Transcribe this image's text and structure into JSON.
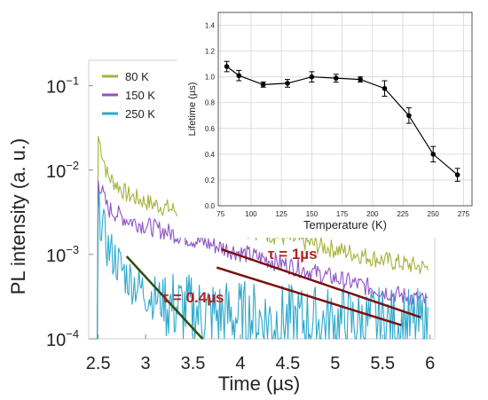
{
  "chart_data": [
    {
      "type": "line",
      "yscale": "log",
      "xlabel": "Time (µs)",
      "ylabel": "PL intensity (a. u.)",
      "xlim": [
        2.4,
        6.05
      ],
      "ylim": [
        0.0001,
        0.2
      ],
      "x_ticks": [
        2.5,
        3,
        3.5,
        4,
        4.5,
        5,
        5.5,
        6
      ],
      "x_tick_labels": [
        "2.5",
        "3",
        "3.5",
        "4",
        "4.5",
        "5",
        "5.5",
        "6"
      ],
      "y_ticks": [
        {
          "value": 0.1,
          "base": "10",
          "exp": "−1"
        },
        {
          "value": 0.01,
          "base": "10",
          "exp": "−2"
        },
        {
          "value": 0.001,
          "base": "10",
          "exp": "−3"
        },
        {
          "value": 0.0001,
          "base": "10",
          "exp": "−4"
        }
      ],
      "legend": {
        "position": "top-left"
      },
      "series": [
        {
          "name": "80 K",
          "color": "#a6b23a",
          "onset": 2.5,
          "peak": 0.025,
          "decay": [
            [
              2.5,
              0.025
            ],
            [
              2.6,
              0.0085
            ],
            [
              2.8,
              0.0052
            ],
            [
              3.0,
              0.0042
            ],
            [
              3.5,
              0.0029
            ],
            [
              4.0,
              0.0021
            ],
            [
              4.5,
              0.00155
            ],
            [
              5.0,
              0.00115
            ],
            [
              5.5,
              0.00086
            ],
            [
              6.0,
              0.00068
            ]
          ]
        },
        {
          "name": "150 K",
          "color": "#8e53c4",
          "onset": 2.5,
          "peak": 0.0075,
          "decay": [
            [
              2.5,
              0.0075
            ],
            [
              2.6,
              0.0035
            ],
            [
              2.8,
              0.0026
            ],
            [
              3.0,
              0.0022
            ],
            [
              3.5,
              0.0015
            ],
            [
              4.0,
              0.00105
            ],
            [
              4.5,
              0.00075
            ],
            [
              5.0,
              0.00052
            ],
            [
              5.5,
              0.00037
            ],
            [
              6.0,
              0.00027
            ]
          ]
        },
        {
          "name": "250 K",
          "color": "#2fa8cc",
          "onset": 2.5,
          "peak": 0.0035,
          "decay": [
            [
              2.5,
              0.0035
            ],
            [
              2.6,
              0.0012
            ],
            [
              2.8,
              0.00055
            ],
            [
              3.0,
              0.00035
            ],
            [
              3.3,
              0.00024
            ],
            [
              3.6,
              0.0002
            ],
            [
              4.5,
              0.00016
            ],
            [
              6.0,
              0.00014
            ]
          ]
        }
      ],
      "fits": [
        {
          "color": "#2e4f12",
          "points": [
            [
              2.8,
              0.00095
            ],
            [
              3.6,
              0.0001
            ]
          ]
        },
        {
          "color": "#7a1010",
          "points": [
            [
              3.8,
              0.00115
            ],
            [
              5.9,
              0.00018
            ]
          ]
        },
        {
          "color": "#7a1010",
          "points": [
            [
              3.75,
              0.0007
            ],
            [
              5.7,
              0.000145
            ]
          ]
        }
      ],
      "annotations": [
        {
          "text": "τ = 1µs",
          "color": "#b52020",
          "x": 4.55,
          "y": 0.00088
        },
        {
          "text": "τ = 0.4µs",
          "color": "#b52020",
          "x": 3.5,
          "y": 0.00027
        }
      ]
    },
    {
      "type": "line",
      "xlabel": "Temperature (K)",
      "ylabel": "Lifetime (µs)",
      "xlim": [
        73,
        282
      ],
      "ylim": [
        0,
        1.5
      ],
      "x_ticks": [
        75,
        100,
        125,
        150,
        175,
        200,
        225,
        250,
        275
      ],
      "y_ticks": [
        0.0,
        0.2,
        0.4,
        0.6,
        0.8,
        1.0,
        1.2,
        1.4
      ],
      "grid": true,
      "color": "#000000",
      "x": [
        80,
        90,
        110,
        130,
        150,
        170,
        190,
        210,
        230,
        250,
        270
      ],
      "y": [
        1.08,
        1.01,
        0.94,
        0.95,
        1.0,
        0.99,
        0.98,
        0.91,
        0.7,
        0.4,
        0.24
      ],
      "yerr": [
        0.04,
        0.04,
        0.02,
        0.03,
        0.04,
        0.03,
        0.02,
        0.06,
        0.06,
        0.06,
        0.05
      ]
    }
  ]
}
